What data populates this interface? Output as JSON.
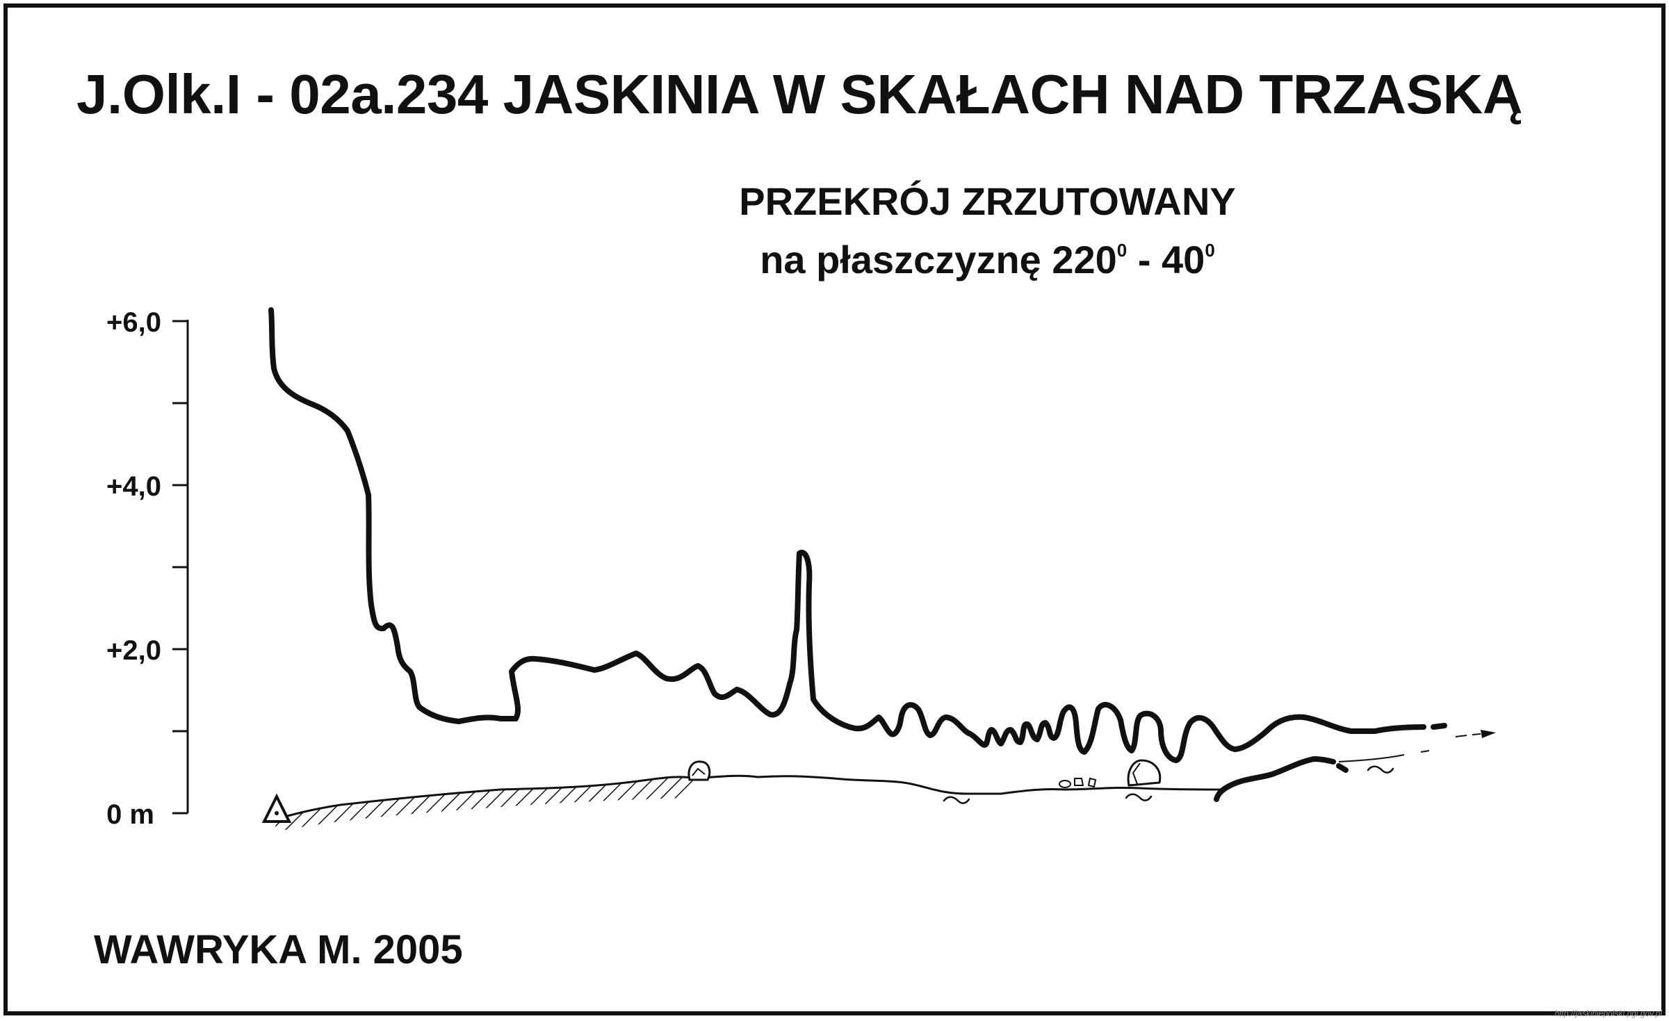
{
  "title": "J.Olk.I - 02a.234  JASKINIA W SKAŁACH NAD TRZASKĄ",
  "subtitle_line1": "PRZEKRÓJ ZRZUTOWANY",
  "subtitle_line2_text": "na płaszczyznę 220",
  "subtitle_line2_sup1": "0",
  "subtitle_line2_mid": " - 40",
  "subtitle_line2_sup2": "0",
  "scale_labels": {
    "top": "+6,0",
    "upper": "+4,0",
    "middle": "+2,0",
    "zero": "0 m"
  },
  "author": "WAWRYKA M. 2005",
  "watermark": "http://jaskiniepolski.pgi.gov.pl",
  "colors": {
    "line": "#111111",
    "background": "#ffffff"
  },
  "icons": [
    "datum-triangle-icon",
    "boulder-icon",
    "water-tilde-icon",
    "direction-arrow-icon"
  ]
}
